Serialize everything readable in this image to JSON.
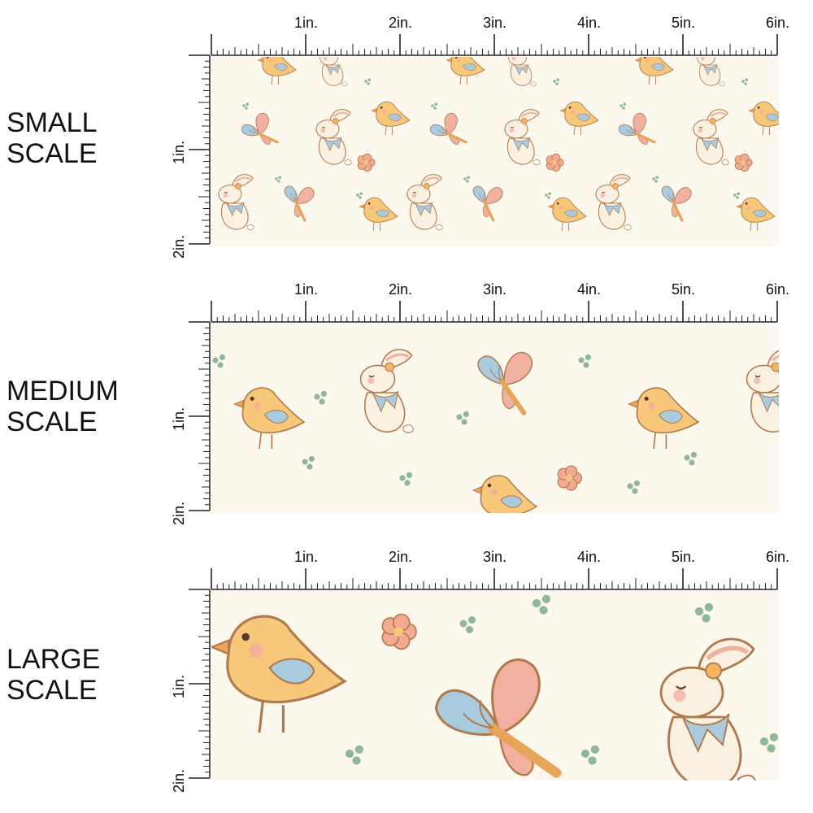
{
  "labels": {
    "small": [
      "SMALL",
      "SCALE"
    ],
    "medium": [
      "MEDIUM",
      "SCALE"
    ],
    "large": [
      "LARGE",
      "SCALE"
    ]
  },
  "ruler": {
    "horizontal": [
      "1in.",
      "2in.",
      "3in.",
      "4in.",
      "5in.",
      "6in."
    ],
    "vertical": [
      "1in.",
      "2in."
    ]
  },
  "colors": {
    "fabric_background": "#fdf8ee",
    "chick_body": "#f7c77a",
    "chick_wing": "#f2a7a0",
    "bunny_body": "#fbf1e1",
    "butterfly_blue": "#a9cbe0",
    "butterfly_pink": "#f2b1a0",
    "dot_green": "#8fb79a",
    "outline": "#b07a4d"
  },
  "motifs": [
    "chick-icon",
    "bunny-icon",
    "butterfly-icon",
    "flower-icon",
    "green-dot-icon"
  ]
}
